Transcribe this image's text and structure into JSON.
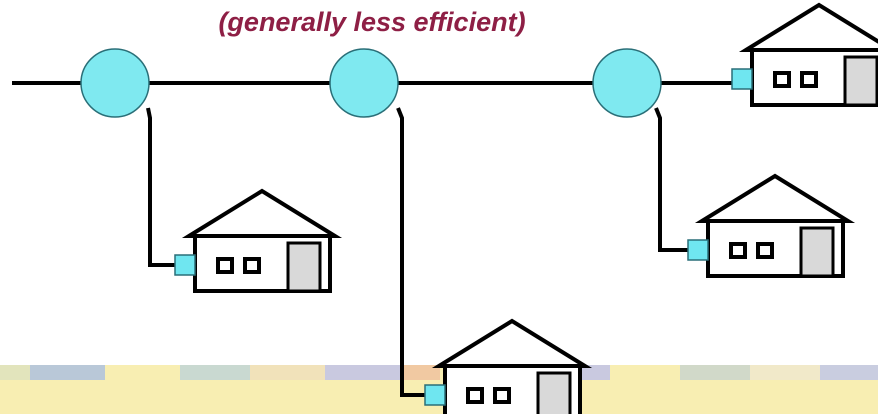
{
  "caption": "(generally less efficient)"
}
